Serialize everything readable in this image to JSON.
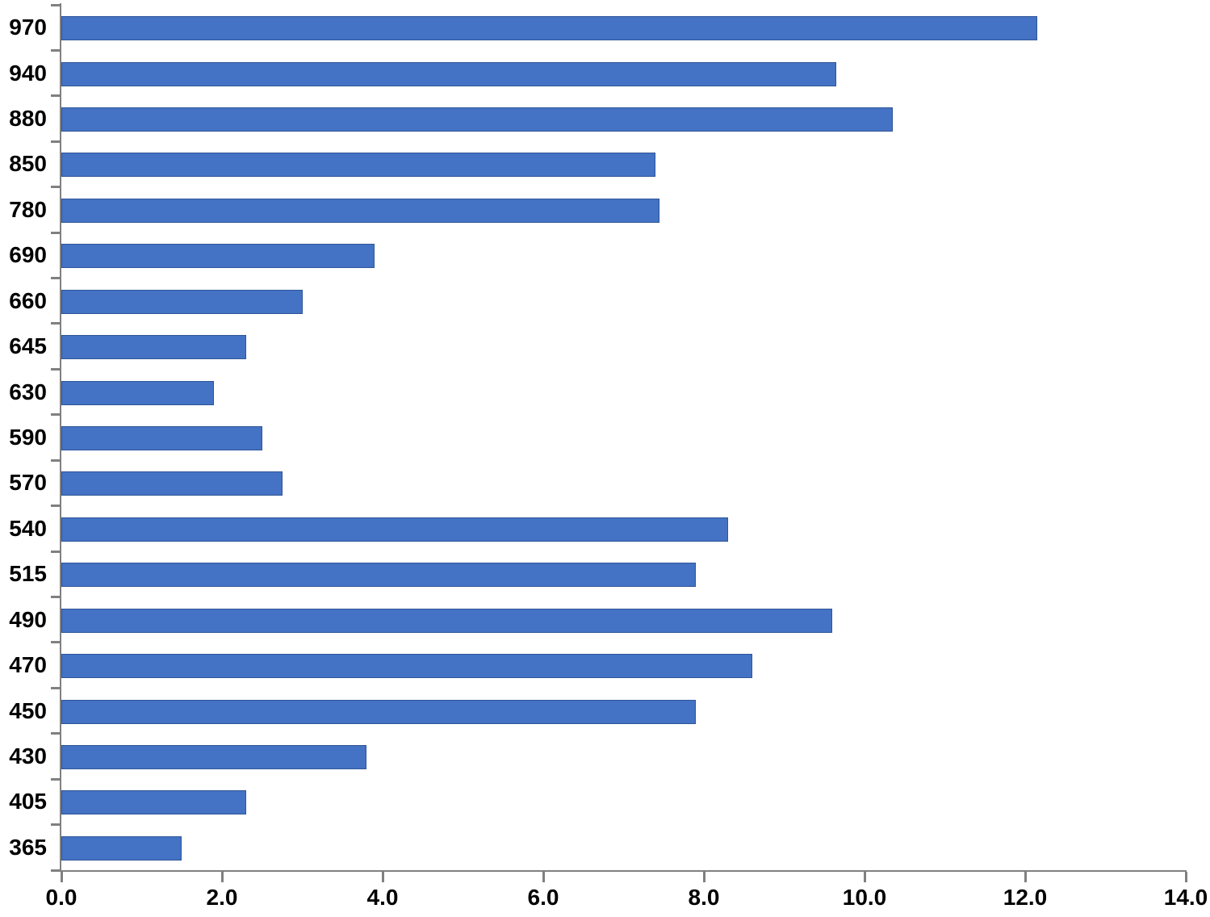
{
  "chart_data": {
    "type": "bar",
    "orientation": "horizontal",
    "title": "",
    "xlabel": "",
    "ylabel": "",
    "categories": [
      "970",
      "940",
      "880",
      "850",
      "780",
      "690",
      "660",
      "645",
      "630",
      "590",
      "570",
      "540",
      "515",
      "490",
      "470",
      "450",
      "430",
      "405",
      "365"
    ],
    "values": [
      12.15,
      9.65,
      10.35,
      7.4,
      7.45,
      3.9,
      3.0,
      2.3,
      1.9,
      2.5,
      2.75,
      8.3,
      7.9,
      9.6,
      8.6,
      7.9,
      3.8,
      2.3,
      1.5
    ],
    "xlim": [
      0,
      14
    ],
    "x_ticks": [
      "0.0",
      "2.0",
      "4.0",
      "6.0",
      "8.0",
      "10.0",
      "12.0",
      "14.0"
    ],
    "x_tick_values": [
      0,
      2,
      4,
      6,
      8,
      10,
      12,
      14
    ],
    "grid": false,
    "legend": false,
    "bar_color": "#4472C4",
    "bar_border_color": "#2F5597",
    "axis_color": "#808080",
    "text_color": "#000000"
  }
}
